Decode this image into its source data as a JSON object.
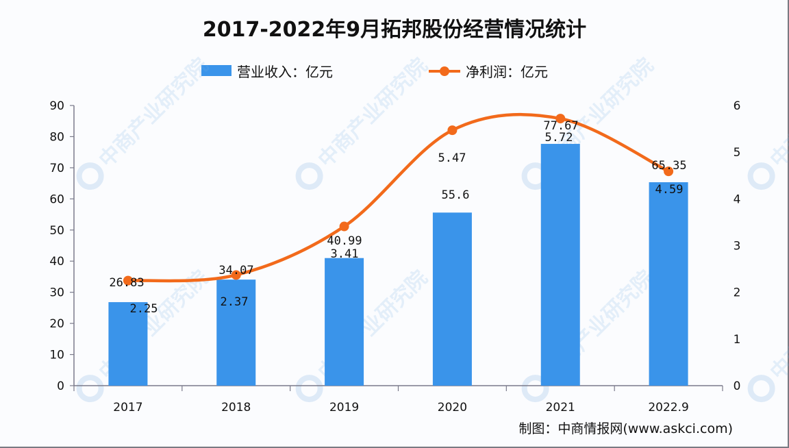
{
  "title": "2017-2022年9月拓邦股份经营情况统计",
  "legend": {
    "bar_label": "营业收入：亿元",
    "line_label": "净利润：亿元"
  },
  "source": "制图：中商情报网(www.askci.com)",
  "watermark": "中商产业研究院",
  "colors": {
    "bar": "#3a94ea",
    "line": "#f26a1b",
    "axis": "#7a7a8a"
  },
  "chart_data": {
    "type": "bar+line",
    "title": "2017-2022年9月拓邦股份经营情况统计",
    "categories": [
      "2017",
      "2018",
      "2019",
      "2020",
      "2021",
      "2022.9"
    ],
    "series": [
      {
        "name": "营业收入：亿元",
        "type": "bar",
        "axis": "left",
        "values": [
          26.83,
          34.07,
          40.99,
          55.6,
          77.67,
          65.35
        ]
      },
      {
        "name": "净利润：亿元",
        "type": "line",
        "axis": "right",
        "values": [
          2.25,
          2.37,
          3.41,
          5.47,
          5.72,
          4.59
        ]
      }
    ],
    "y_left": {
      "min": 0,
      "max": 90,
      "ticks": [
        0,
        10,
        20,
        30,
        40,
        50,
        60,
        70,
        80,
        90
      ]
    },
    "y_right": {
      "min": 0,
      "max": 6,
      "ticks": [
        0,
        1,
        2,
        3,
        4,
        5,
        6
      ]
    },
    "xlabel": "",
    "ylabel": "",
    "grid": false,
    "legend_position": "top"
  }
}
